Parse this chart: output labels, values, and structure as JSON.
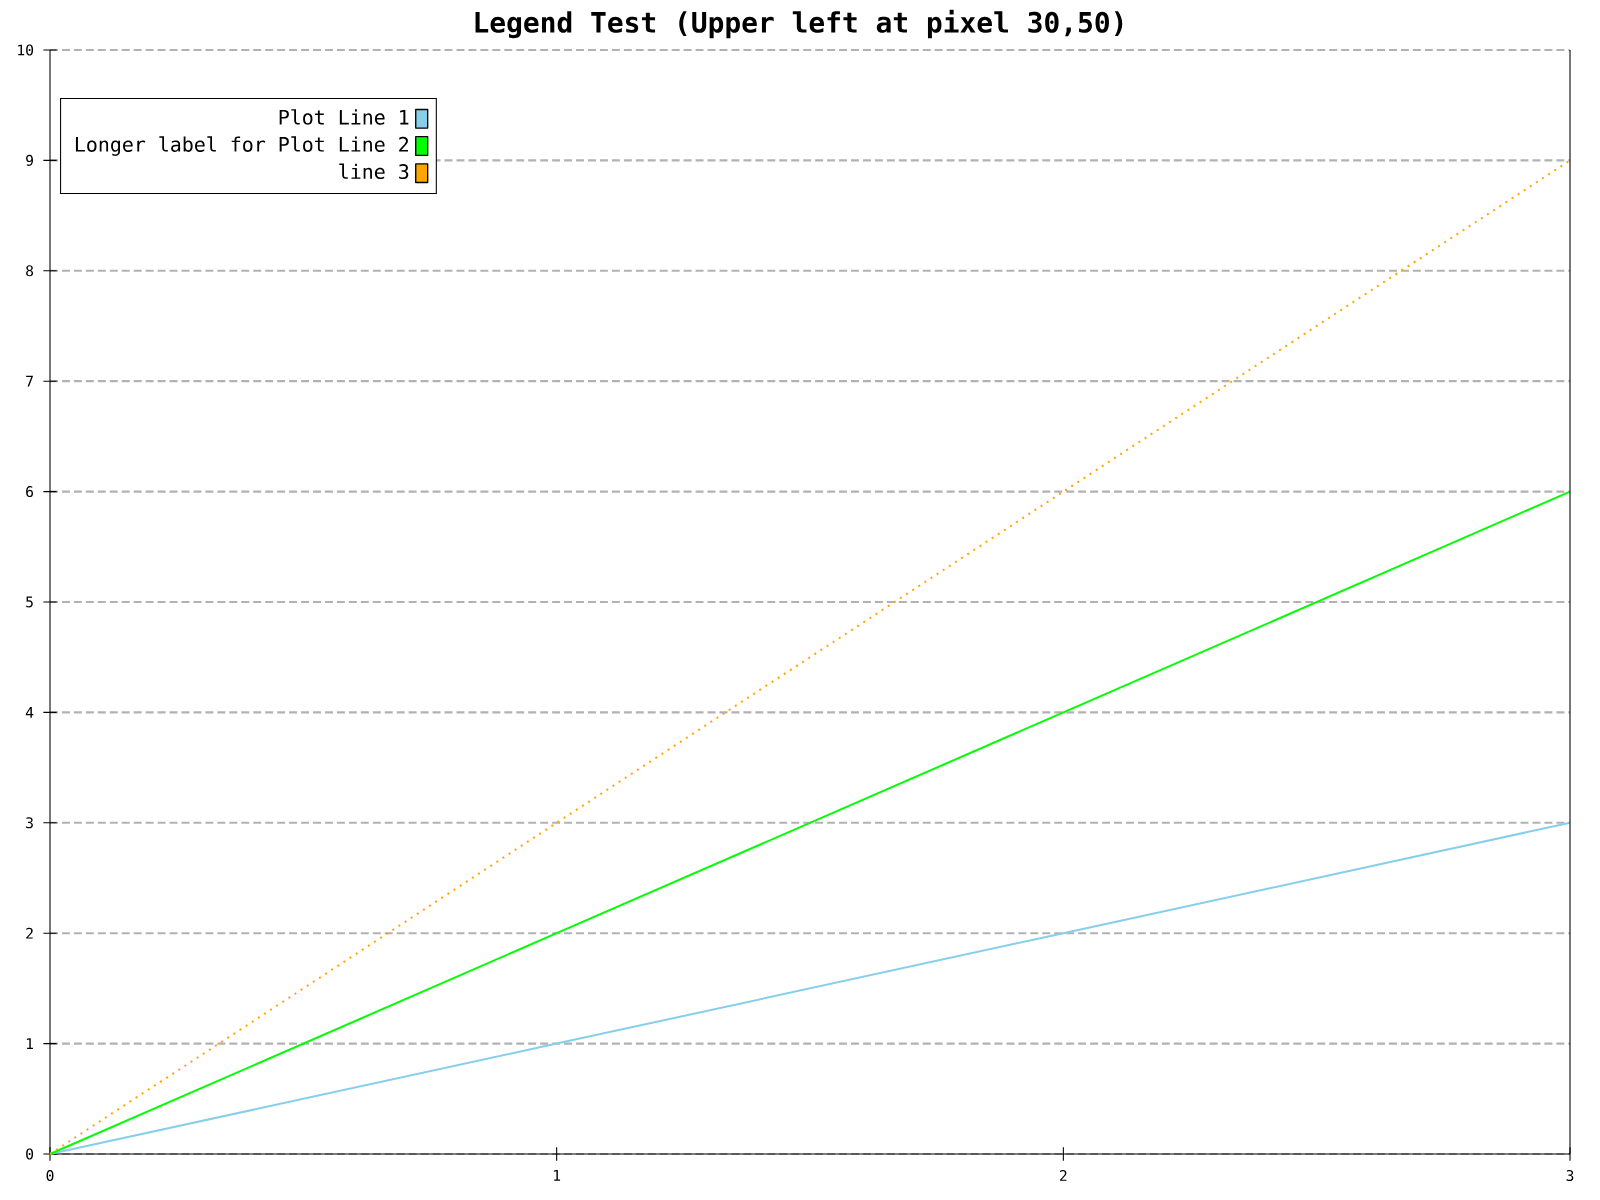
{
  "chart_data": {
    "type": "line",
    "title": "Legend Test (Upper left at pixel 30,50)",
    "x": [
      0,
      1,
      2,
      3
    ],
    "series": [
      {
        "name": "Plot Line 1",
        "color": "#87ceeb",
        "values": [
          0,
          1,
          2,
          3
        ]
      },
      {
        "name": "Longer label for Plot Line 2",
        "color": "#00ff00",
        "values": [
          0,
          2,
          4,
          6
        ]
      },
      {
        "name": "line 3",
        "color": "#ffa500",
        "values": [
          0,
          3,
          6,
          9
        ],
        "line_style": "dotted"
      }
    ],
    "xlim": [
      0,
      3
    ],
    "xticks": [
      0,
      1,
      2,
      3
    ],
    "ylim": [
      0,
      10
    ],
    "yticks": [
      0,
      1,
      2,
      3,
      4,
      5,
      6,
      7,
      8,
      9,
      10
    ],
    "grid": "y",
    "legend": "top left",
    "marker": "none",
    "line_style": "solid"
  }
}
